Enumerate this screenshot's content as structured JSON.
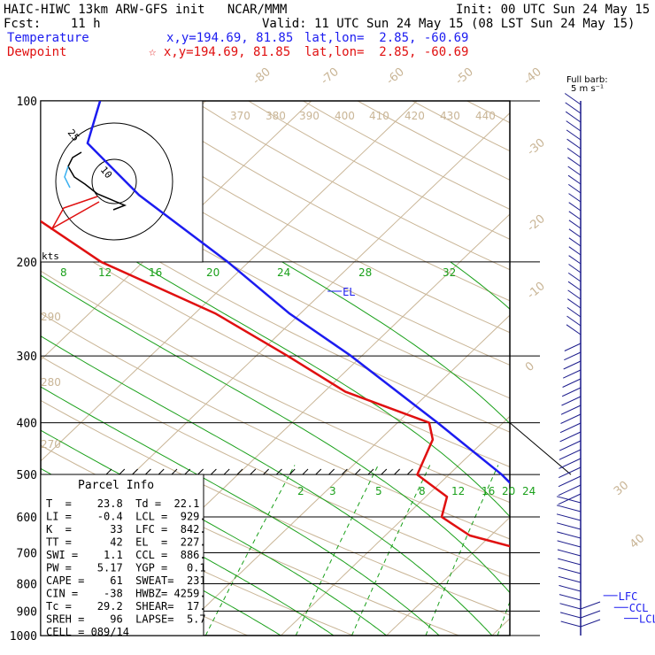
{
  "header": {
    "title": "HAIC-HIWC 13km ARW-GFS init   NCAR/MMM",
    "init": "Init: 00 UTC Sun 24 May 15",
    "fcst": "Fcst:    11 h",
    "valid": "Valid: 11 UTC Sun 24 May 15 (08 LST Sun 24 May 15)",
    "temp_label": "Temperature",
    "temp_xy": "x,y=194.69, 81.85",
    "temp_latlon": "lat,lon=  2.85, -60.69",
    "dew_label": "Dewpoint",
    "dew_xy": "☆ x,y=194.69, 81.85",
    "dew_latlon": "lat,lon=  2.85, -60.69"
  },
  "colors": {
    "temperature": "#1c1cf0",
    "dewpoint": "#e01010",
    "mixing_ratio": "#1aa01a",
    "isotherm": "#c9b596",
    "wind_barb": "#1c1c8c"
  },
  "parcel_info": {
    "title": "Parcel Info",
    "rows": [
      "T  =    23.8  Td =  22.1",
      "LI =    -0.4  LCL =  929.",
      "K  =      33  LFC =  842.",
      "TT =      42  EL  =  227.",
      "SWI =    1.1  CCL =  886.",
      "PW =    5.17  YGP =   0.1",
      "CAPE =    61  SWEAT=  231",
      "CIN =    -38  HWBZ= 4259.",
      "Tc =    29.2  SHEAR=  17.",
      "SREH =    96  LAPSE=  5.7",
      "CELL = 089/14"
    ]
  },
  "hodograph": {
    "units": "kts",
    "ring_labels": [
      "10",
      "25"
    ]
  },
  "wind_barb_legend": [
    "Full barb:",
    "5 m s⁻¹"
  ],
  "chart_data": {
    "type": "line",
    "y_scale": "log pressure (hPa)",
    "ylim": [
      1000,
      100
    ],
    "pressure_levels": [
      100,
      200,
      300,
      400,
      500,
      600,
      700,
      800,
      900,
      1000
    ],
    "isotherm_labels": [
      "-80",
      "-70",
      "-60",
      "-50",
      "-40",
      "-30",
      "-20",
      "-10",
      "0",
      "30",
      "40"
    ],
    "theta_labels": [
      "370",
      "380",
      "390",
      "400",
      "410",
      "420",
      "430",
      "440",
      "290",
      "280",
      "270"
    ],
    "mixing_ratio_labels_upper": [
      "8",
      "12",
      "16",
      "20",
      "24",
      "28",
      "32"
    ],
    "mixing_ratio_labels_lower": [
      "2",
      "3",
      "5",
      "8",
      "12",
      "16",
      "20",
      "24"
    ],
    "level_markers": [
      "EL",
      "LFC",
      "CCL",
      "LCL"
    ],
    "series": [
      {
        "key": "temperature",
        "points": [
          [
            1000,
            23.8
          ],
          [
            950,
            21.6
          ],
          [
            900,
            19.6
          ],
          [
            850,
            17.2
          ],
          [
            800,
            14.6
          ],
          [
            700,
            9.4
          ],
          [
            600,
            3.2
          ],
          [
            500,
            -5.0
          ],
          [
            400,
            -16.2
          ],
          [
            300,
            -31.0
          ],
          [
            250,
            -41.0
          ],
          [
            200,
            -52.0
          ],
          [
            150,
            -67.0
          ],
          [
            120,
            -77.0
          ],
          [
            100,
            -80.0
          ]
        ]
      },
      {
        "key": "dewpoint",
        "points": [
          [
            1000,
            22.1
          ],
          [
            950,
            20.6
          ],
          [
            900,
            18.0
          ],
          [
            850,
            15.0
          ],
          [
            800,
            12.2
          ],
          [
            700,
            5.8
          ],
          [
            650,
            -2.0
          ],
          [
            600,
            -6.5
          ],
          [
            550,
            -8.0
          ],
          [
            500,
            -13.0
          ],
          [
            430,
            -15.0
          ],
          [
            400,
            -17.0
          ],
          [
            350,
            -28.0
          ],
          [
            300,
            -37.0
          ],
          [
            250,
            -48.0
          ],
          [
            200,
            -64.0
          ],
          [
            150,
            -80.0
          ],
          [
            100,
            -88.0
          ]
        ]
      }
    ],
    "markers": [
      {
        "label": "EL",
        "p": 227
      },
      {
        "label": "LFC",
        "p": 842
      },
      {
        "label": "CCL",
        "p": 886
      },
      {
        "label": "LCL",
        "p": 929
      }
    ]
  }
}
